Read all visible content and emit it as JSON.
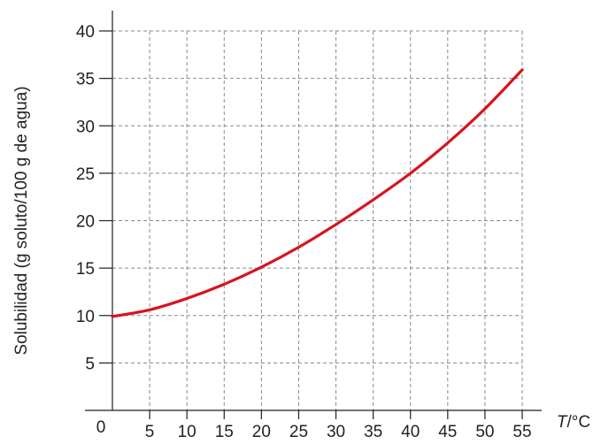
{
  "chart_data": {
    "type": "line",
    "title": "",
    "xlabel": "T/°C",
    "ylabel": "Solubilidad (g soluto/100 g de agua)",
    "xlim": [
      0,
      55
    ],
    "ylim": [
      0,
      40
    ],
    "x_ticks": [
      "0",
      "5",
      "10",
      "15",
      "20",
      "25",
      "30",
      "35",
      "40",
      "45",
      "50",
      "55"
    ],
    "y_ticks": [
      "5",
      "10",
      "15",
      "20",
      "25",
      "30",
      "35",
      "40"
    ],
    "grid": true,
    "legend": "none",
    "series": [
      {
        "color": "#d7141e",
        "x": [
          0,
          5,
          10,
          15,
          20,
          25,
          30,
          35,
          40,
          45,
          50,
          55
        ],
        "y": [
          9.9,
          10.6,
          11.8,
          13.3,
          15.1,
          17.2,
          19.6,
          22.2,
          25.0,
          28.2,
          31.8,
          35.9
        ]
      }
    ]
  }
}
